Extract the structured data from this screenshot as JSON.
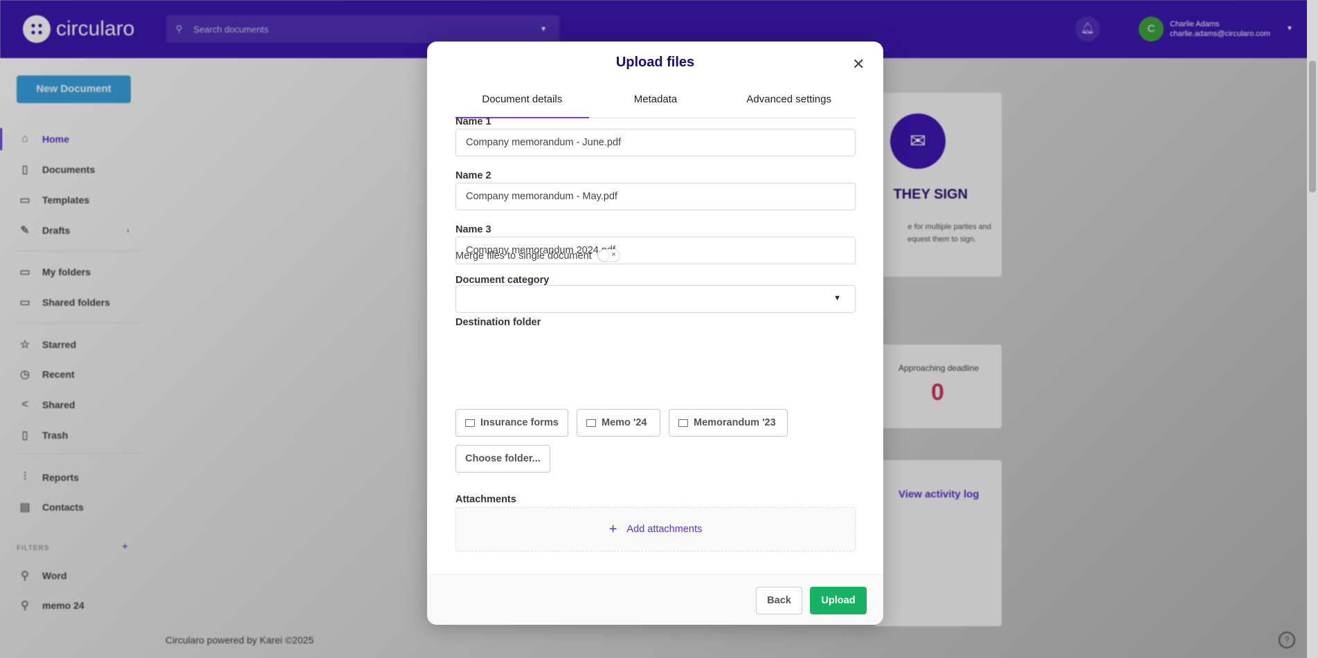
{
  "app": {
    "brand": "circularo",
    "search_placeholder": "Search documents",
    "user_name": "Charlie Adams",
    "user_email": "charlie.adams@circularo.com",
    "avatar_letter": "C"
  },
  "sidebar": {
    "new_document": "New Document",
    "items": [
      {
        "label": "Home",
        "icon": "home-icon"
      },
      {
        "label": "Documents",
        "icon": "document-icon"
      },
      {
        "label": "Templates",
        "icon": "template-icon"
      },
      {
        "label": "Drafts",
        "icon": "edit-icon"
      },
      {
        "label": "My folders",
        "icon": "folder-icon"
      },
      {
        "label": "Shared folders",
        "icon": "shared-folder-icon"
      },
      {
        "label": "Starred",
        "icon": "star-icon"
      },
      {
        "label": "Recent",
        "icon": "clock-icon"
      },
      {
        "label": "Shared",
        "icon": "share-icon"
      },
      {
        "label": "Trash",
        "icon": "trash-icon"
      },
      {
        "label": "Reports",
        "icon": "chart-icon"
      },
      {
        "label": "Contacts",
        "icon": "contacts-icon"
      }
    ],
    "filters_label": "FILTERS",
    "filters": [
      {
        "label": "Word"
      },
      {
        "label": "memo 24"
      }
    ]
  },
  "background": {
    "card_title": "THEY SIGN",
    "card_text_1": "e for multiple parties and",
    "card_text_2": "equest them to sign.",
    "deadline_label": "Approaching deadline",
    "deadline_value": "0",
    "activity_link": "View activity log",
    "footer": "Circularo powered by Karei ©2025"
  },
  "modal": {
    "title": "Upload files",
    "tabs": [
      {
        "label": "Document details",
        "active": true
      },
      {
        "label": "Metadata"
      },
      {
        "label": "Advanced settings"
      }
    ],
    "fields": [
      {
        "label": "Name 1",
        "value": "Company memorandum - June.pdf"
      },
      {
        "label": "Name 2",
        "value": "Company memorandum - May.pdf"
      },
      {
        "label": "Name 3",
        "value": "Company memorandum 2024.pdf"
      }
    ],
    "merge_label": "Merge files to single document",
    "merge_enabled": false,
    "category_label": "Document category",
    "category_value": "",
    "destination_label": "Destination folder",
    "folders": [
      "Insurance forms",
      "Memo '24",
      "Memorandum '23"
    ],
    "choose_folder": "Choose folder...",
    "attachments_label": "Attachments",
    "add_attachments": "Add attachments",
    "back": "Back",
    "upload": "Upload"
  },
  "colors": {
    "header": "#3d17b0",
    "accent": "#7c3aed",
    "upload": "#16b364",
    "deadline": "#d0305a"
  }
}
